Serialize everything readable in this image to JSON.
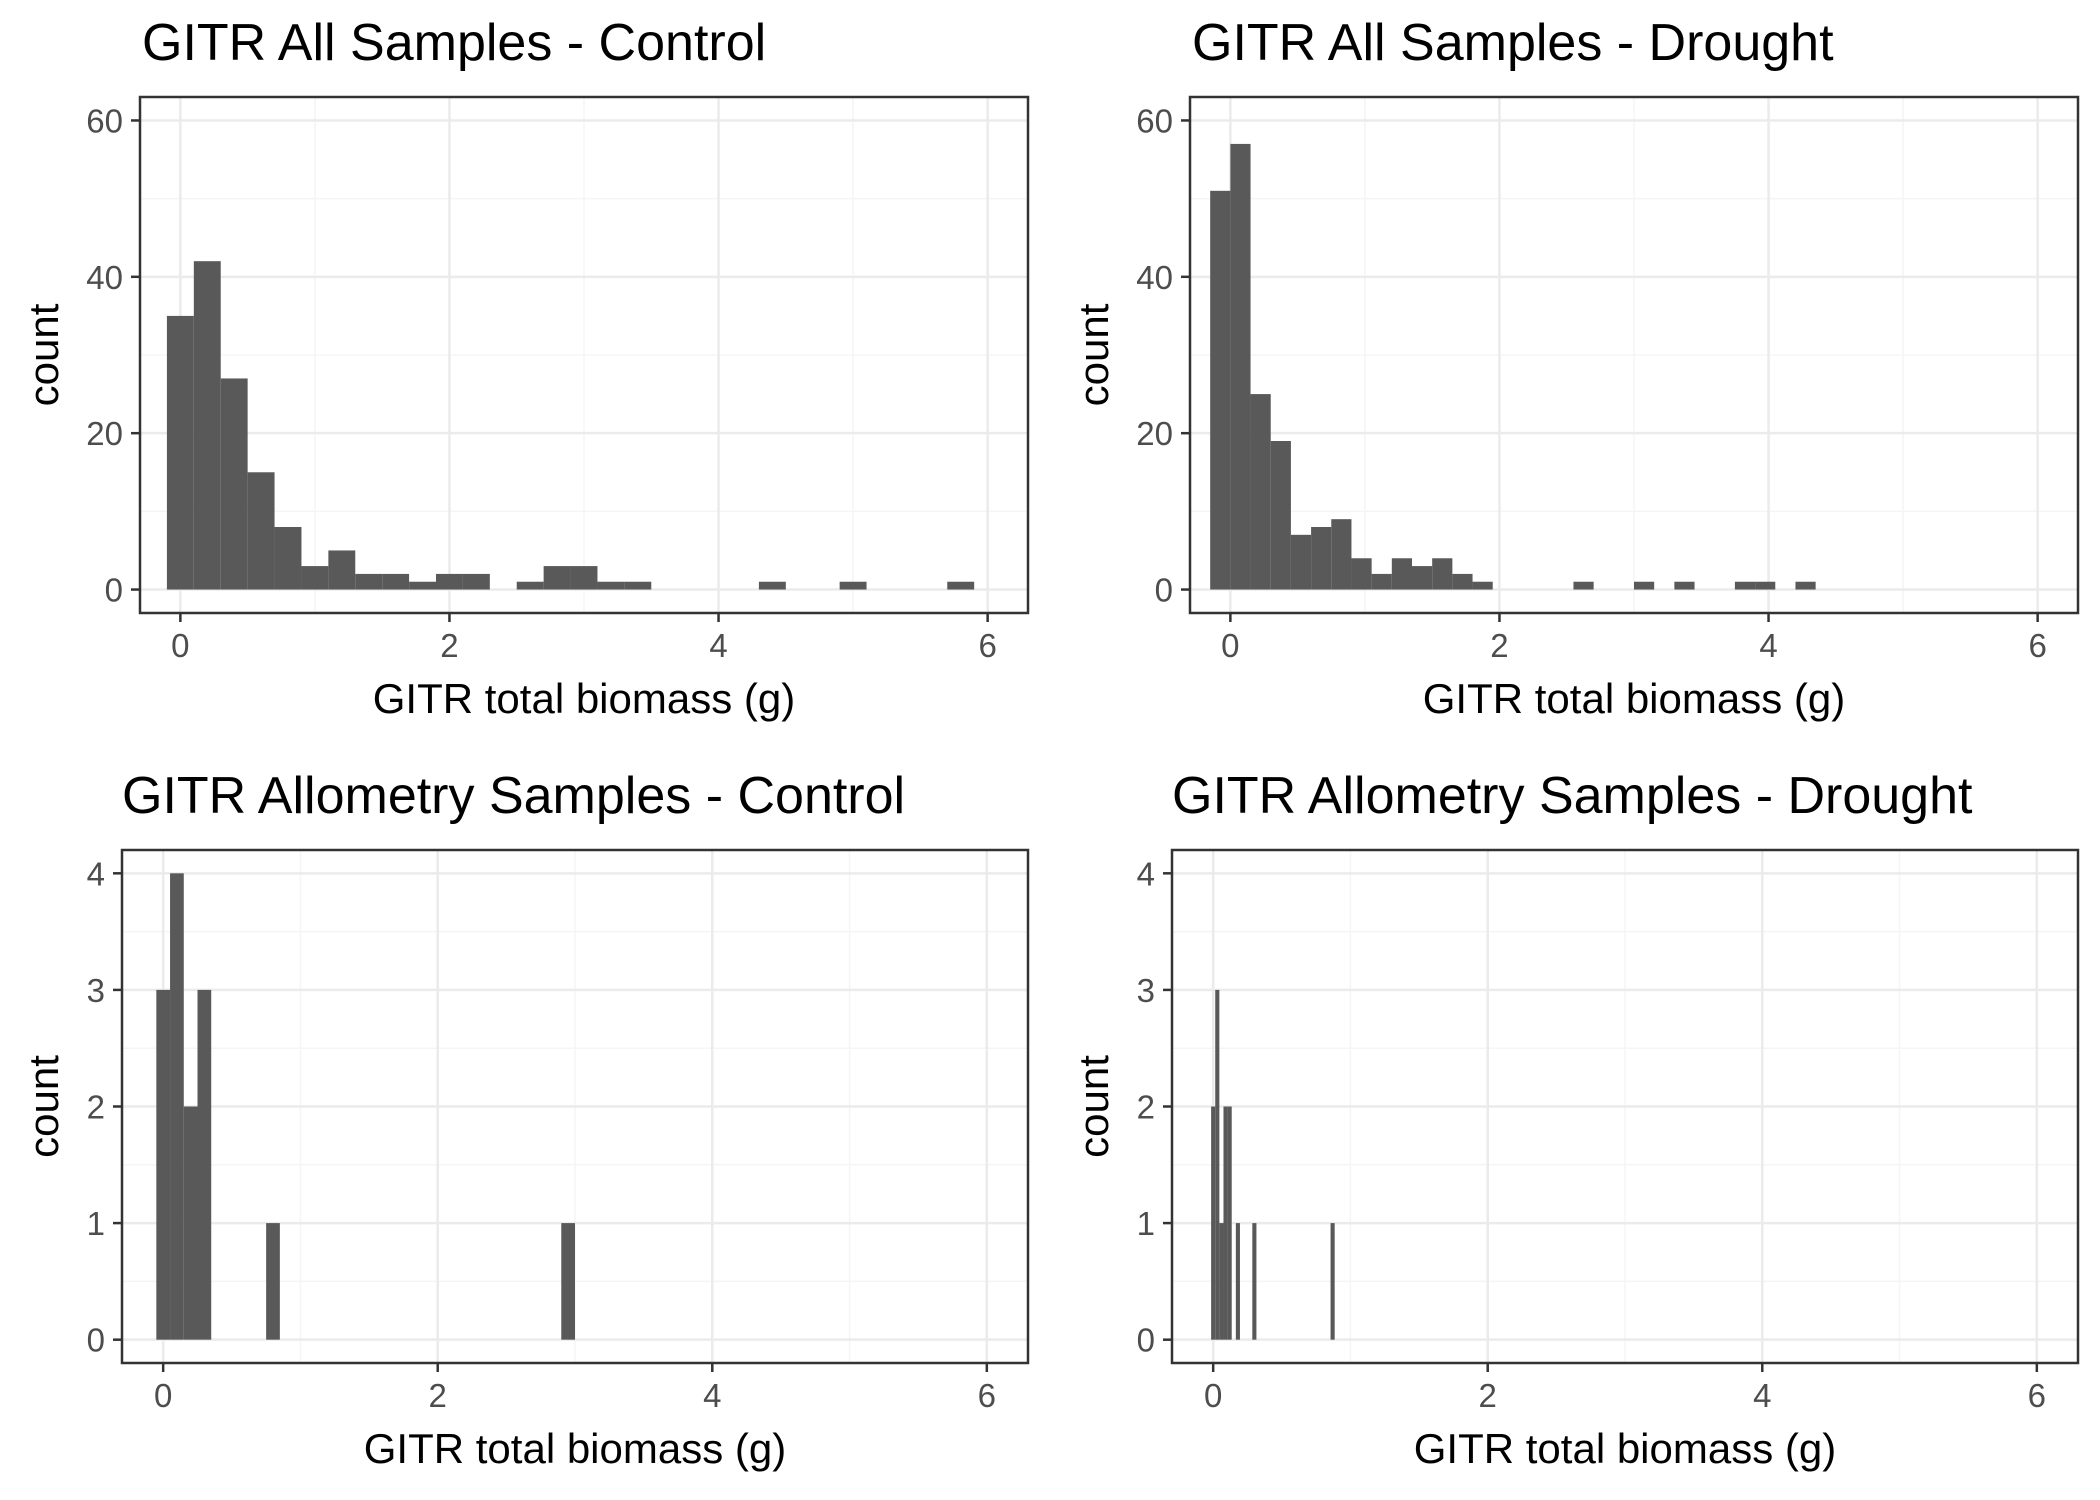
{
  "chart_data": [
    {
      "type": "bar",
      "title": "GITR All Samples - Control",
      "xlabel": "GITR total biomass (g)",
      "ylabel": "count",
      "xlim": [
        -0.3,
        6.3
      ],
      "ylim": [
        -3,
        63
      ],
      "xticks": [
        0,
        2,
        4,
        6
      ],
      "yticks": [
        0,
        20,
        40,
        60
      ],
      "grid": true,
      "bin_width": 0.2,
      "bins": [
        {
          "x": 0.0,
          "count": 35
        },
        {
          "x": 0.2,
          "count": 42
        },
        {
          "x": 0.4,
          "count": 27
        },
        {
          "x": 0.6,
          "count": 15
        },
        {
          "x": 0.8,
          "count": 8
        },
        {
          "x": 1.0,
          "count": 3
        },
        {
          "x": 1.2,
          "count": 5
        },
        {
          "x": 1.4,
          "count": 2
        },
        {
          "x": 1.6,
          "count": 2
        },
        {
          "x": 1.8,
          "count": 1
        },
        {
          "x": 2.0,
          "count": 2
        },
        {
          "x": 2.2,
          "count": 2
        },
        {
          "x": 2.6,
          "count": 1
        },
        {
          "x": 2.8,
          "count": 3
        },
        {
          "x": 3.0,
          "count": 3
        },
        {
          "x": 3.2,
          "count": 1
        },
        {
          "x": 3.4,
          "count": 1
        },
        {
          "x": 4.4,
          "count": 1
        },
        {
          "x": 5.0,
          "count": 1
        },
        {
          "x": 5.8,
          "count": 1
        }
      ]
    },
    {
      "type": "bar",
      "title": "GITR All Samples - Drought",
      "xlabel": "GITR total biomass (g)",
      "ylabel": "count",
      "xlim": [
        -0.3,
        6.3
      ],
      "ylim": [
        -3,
        63
      ],
      "xticks": [
        0,
        2,
        4,
        6
      ],
      "yticks": [
        0,
        20,
        40,
        60
      ],
      "grid": true,
      "bin_width": 0.15,
      "bins": [
        {
          "x": -0.075,
          "count": 51
        },
        {
          "x": 0.075,
          "count": 57
        },
        {
          "x": 0.225,
          "count": 25
        },
        {
          "x": 0.375,
          "count": 19
        },
        {
          "x": 0.525,
          "count": 7
        },
        {
          "x": 0.675,
          "count": 8
        },
        {
          "x": 0.825,
          "count": 9
        },
        {
          "x": 0.975,
          "count": 4
        },
        {
          "x": 1.125,
          "count": 2
        },
        {
          "x": 1.275,
          "count": 4
        },
        {
          "x": 1.425,
          "count": 3
        },
        {
          "x": 1.575,
          "count": 4
        },
        {
          "x": 1.725,
          "count": 2
        },
        {
          "x": 1.875,
          "count": 1
        },
        {
          "x": 2.625,
          "count": 1
        },
        {
          "x": 3.075,
          "count": 1
        },
        {
          "x": 3.375,
          "count": 1
        },
        {
          "x": 3.825,
          "count": 1
        },
        {
          "x": 3.975,
          "count": 1
        },
        {
          "x": 4.275,
          "count": 1
        }
      ]
    },
    {
      "type": "bar",
      "title": "GITR Allometry Samples - Control",
      "xlabel": "GITR total biomass (g)",
      "ylabel": "count",
      "xlim": [
        -0.3,
        6.3
      ],
      "ylim": [
        -0.2,
        4.2
      ],
      "xticks": [
        0,
        2,
        4,
        6
      ],
      "yticks": [
        0,
        1,
        2,
        3,
        4
      ],
      "grid": true,
      "bin_width": 0.1,
      "bins": [
        {
          "x": 0.0,
          "count": 3
        },
        {
          "x": 0.1,
          "count": 4
        },
        {
          "x": 0.2,
          "count": 2
        },
        {
          "x": 0.3,
          "count": 3
        },
        {
          "x": 0.8,
          "count": 1
        },
        {
          "x": 2.95,
          "count": 1
        }
      ]
    },
    {
      "type": "bar",
      "title": "GITR Allometry Samples - Drought",
      "xlabel": "GITR total biomass (g)",
      "ylabel": "count",
      "xlim": [
        -0.3,
        6.3
      ],
      "ylim": [
        -0.2,
        4.2
      ],
      "xticks": [
        0,
        2,
        4,
        6
      ],
      "yticks": [
        0,
        1,
        2,
        3,
        4
      ],
      "grid": true,
      "bin_width": 0.03,
      "bins": [
        {
          "x": 0.0,
          "count": 2
        },
        {
          "x": 0.03,
          "count": 3
        },
        {
          "x": 0.06,
          "count": 1
        },
        {
          "x": 0.09,
          "count": 2
        },
        {
          "x": 0.12,
          "count": 2
        },
        {
          "x": 0.18,
          "count": 1
        },
        {
          "x": 0.3,
          "count": 1
        },
        {
          "x": 0.87,
          "count": 1
        }
      ]
    }
  ],
  "colors": {
    "bar": "#595959",
    "grid_major": "#ebebeb",
    "grid_minor": "#f5f5f5",
    "border": "#333333",
    "tick_label": "#4d4d4d",
    "text": "#000000"
  }
}
